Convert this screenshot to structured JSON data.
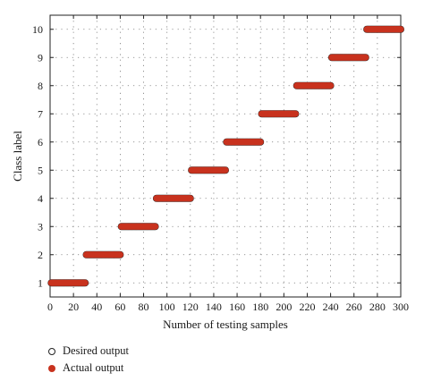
{
  "chart_data": {
    "type": "scatter",
    "xlabel": "Number of testing samples",
    "ylabel": "Class label",
    "xlim": [
      0,
      300
    ],
    "ylim": [
      0.5,
      10.5
    ],
    "xticks": [
      0,
      20,
      40,
      60,
      80,
      100,
      120,
      140,
      160,
      180,
      200,
      220,
      240,
      260,
      280,
      300
    ],
    "yticks": [
      1,
      2,
      3,
      4,
      5,
      6,
      7,
      8,
      9,
      10
    ],
    "grid": true,
    "legend_position": "below",
    "series": [
      {
        "name": "Desired output",
        "marker": "open-circle",
        "color": "#222222",
        "segments": [
          {
            "x_start": 1,
            "x_end": 30,
            "y": 1
          },
          {
            "x_start": 31,
            "x_end": 60,
            "y": 2
          },
          {
            "x_start": 61,
            "x_end": 90,
            "y": 3
          },
          {
            "x_start": 91,
            "x_end": 120,
            "y": 4
          },
          {
            "x_start": 121,
            "x_end": 150,
            "y": 5
          },
          {
            "x_start": 151,
            "x_end": 180,
            "y": 6
          },
          {
            "x_start": 181,
            "x_end": 210,
            "y": 7
          },
          {
            "x_start": 211,
            "x_end": 240,
            "y": 8
          },
          {
            "x_start": 241,
            "x_end": 270,
            "y": 9
          },
          {
            "x_start": 271,
            "x_end": 300,
            "y": 10
          }
        ]
      },
      {
        "name": "Actual output",
        "marker": "filled-circle",
        "color": "#c8321e",
        "segments": [
          {
            "x_start": 1,
            "x_end": 30,
            "y": 1
          },
          {
            "x_start": 31,
            "x_end": 60,
            "y": 2
          },
          {
            "x_start": 61,
            "x_end": 90,
            "y": 3
          },
          {
            "x_start": 91,
            "x_end": 120,
            "y": 4
          },
          {
            "x_start": 121,
            "x_end": 150,
            "y": 5
          },
          {
            "x_start": 151,
            "x_end": 180,
            "y": 6
          },
          {
            "x_start": 181,
            "x_end": 210,
            "y": 7
          },
          {
            "x_start": 211,
            "x_end": 240,
            "y": 8
          },
          {
            "x_start": 241,
            "x_end": 270,
            "y": 9
          },
          {
            "x_start": 271,
            "x_end": 300,
            "y": 10
          }
        ]
      }
    ]
  },
  "legend": {
    "desired_label": "Desired output",
    "actual_label": "Actual output"
  }
}
